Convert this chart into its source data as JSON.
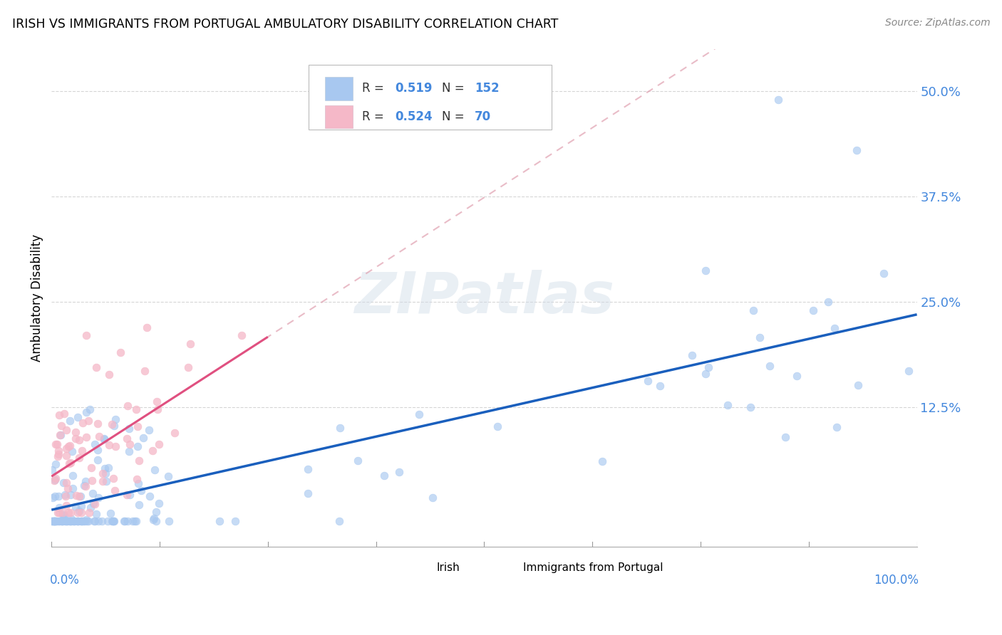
{
  "title": "IRISH VS IMMIGRANTS FROM PORTUGAL AMBULATORY DISABILITY CORRELATION CHART",
  "source": "Source: ZipAtlas.com",
  "ylabel": "Ambulatory Disability",
  "irish_R": "0.519",
  "irish_N": "152",
  "portugal_R": "0.524",
  "portugal_N": "70",
  "irish_scatter_color": "#a8c8f0",
  "irish_line_color": "#1a5fbd",
  "portugal_scatter_color": "#f5b8c8",
  "portugal_line_color": "#e05080",
  "portugal_dash_color": "#e0a0b0",
  "background_color": "#ffffff",
  "grid_color": "#cccccc",
  "axis_label_color": "#4488dd",
  "xlim": [
    0.0,
    1.0
  ],
  "ylim": [
    -0.04,
    0.55
  ],
  "yticks": [
    0.0,
    0.125,
    0.25,
    0.375,
    0.5
  ],
  "ytick_labels": [
    "",
    "12.5%",
    "25.0%",
    "37.5%",
    "50.0%"
  ],
  "watermark_text": "ZIPatlas",
  "legend_text_color": "#4488dd",
  "legend_label_color": "#333333"
}
